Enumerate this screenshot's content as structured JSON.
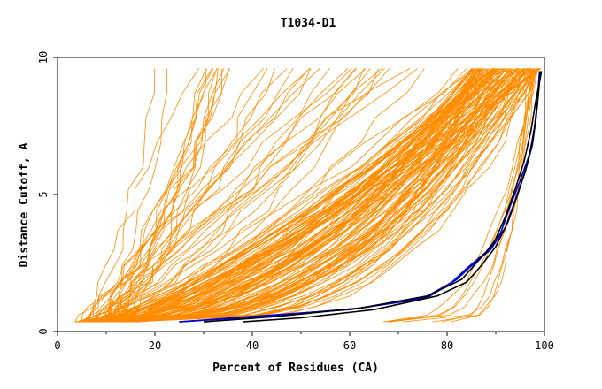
{
  "chart_data": {
    "type": "line",
    "title": "T1034-D1",
    "xlabel": "Percent of Residues (CA)",
    "ylabel": "Distance Cutoff, A",
    "xlim": [
      0,
      100
    ],
    "ylim": [
      0,
      10
    ],
    "x_ticks": [
      0,
      20,
      40,
      60,
      80,
      100
    ],
    "y_ticks": [
      0,
      5,
      10
    ],
    "grid": false,
    "legend": "none",
    "colors": {
      "models": "#ff8c00",
      "highlight_blue": "#0000cc",
      "highlight_black": "#000000",
      "axis": "#000000"
    },
    "series": [
      {
        "group": "highlight",
        "color": "#0000cc",
        "points": [
          [
            25,
            0.35
          ],
          [
            40,
            0.55
          ],
          [
            60,
            0.8
          ],
          [
            75,
            1.2
          ],
          [
            81,
            1.8
          ],
          [
            84,
            2.3
          ],
          [
            88,
            2.9
          ],
          [
            91,
            3.6
          ],
          [
            93,
            4.6
          ],
          [
            95,
            5.5
          ],
          [
            97,
            6.5
          ],
          [
            98,
            7.5
          ],
          [
            98.6,
            8.5
          ],
          [
            99,
            9.5
          ]
        ]
      },
      {
        "group": "highlight",
        "color": "#0000cc",
        "points": [
          [
            25,
            0.35
          ],
          [
            42,
            0.55
          ],
          [
            62,
            0.85
          ],
          [
            76,
            1.25
          ],
          [
            82,
            1.9
          ],
          [
            85,
            2.4
          ],
          [
            89,
            3.0
          ],
          [
            92,
            3.8
          ],
          [
            94,
            4.8
          ],
          [
            96,
            5.8
          ],
          [
            97.5,
            6.8
          ],
          [
            98.3,
            7.8
          ],
          [
            99,
            9.5
          ]
        ]
      },
      {
        "group": "highlight",
        "color": "#000000",
        "points": [
          [
            38,
            0.35
          ],
          [
            50,
            0.5
          ],
          [
            65,
            0.8
          ],
          [
            78,
            1.3
          ],
          [
            84,
            1.8
          ],
          [
            87,
            2.4
          ],
          [
            90,
            3.1
          ],
          [
            92.5,
            4.0
          ],
          [
            94.5,
            5.0
          ],
          [
            96.3,
            6.0
          ],
          [
            97.6,
            7.0
          ],
          [
            98.5,
            8.2
          ],
          [
            99.2,
            9.5
          ]
        ]
      },
      {
        "group": "highlight",
        "color": "#000000",
        "points": [
          [
            30,
            0.35
          ],
          [
            45,
            0.55
          ],
          [
            62,
            0.85
          ],
          [
            76,
            1.3
          ],
          [
            83,
            1.9
          ],
          [
            86,
            2.5
          ],
          [
            89.5,
            3.2
          ],
          [
            92,
            4.2
          ],
          [
            94,
            5.2
          ],
          [
            95.8,
            6.2
          ],
          [
            97.2,
            7.3
          ],
          [
            98.2,
            8.4
          ],
          [
            99.4,
            9.5
          ]
        ]
      }
    ]
  }
}
